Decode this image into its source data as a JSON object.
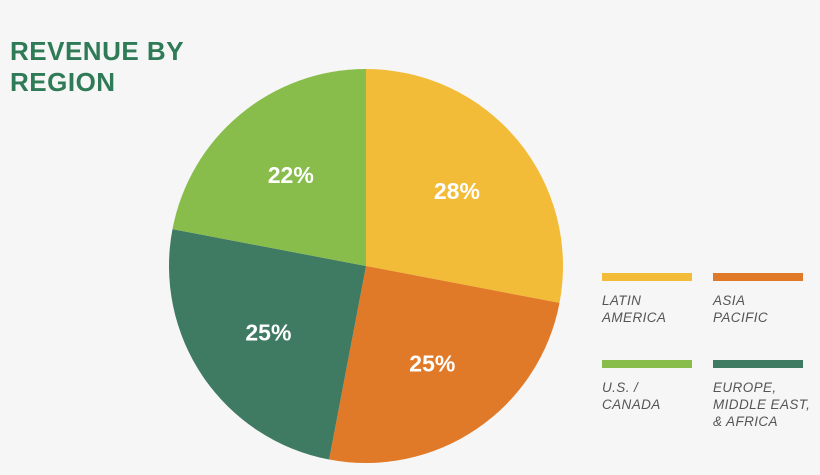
{
  "chart_data": {
    "type": "pie",
    "title": [
      "REVENUE BY",
      "REGION"
    ],
    "slices": [
      {
        "label": [
          "LATIN",
          "AMERICA"
        ],
        "value": 28,
        "display": "28%",
        "color": "#f2bc38"
      },
      {
        "label": [
          "ASIA",
          "PACIFIC"
        ],
        "value": 25,
        "display": "25%",
        "color": "#e07a28"
      },
      {
        "label": [
          "EUROPE,",
          "MIDDLE EAST,",
          "& AFRICA"
        ],
        "value": 25,
        "display": "25%",
        "color": "#3f7a63"
      },
      {
        "label": [
          "U.S. /",
          "CANADA"
        ],
        "value": 22,
        "display": "22%",
        "color": "#88bd4b"
      }
    ],
    "start_angle_deg": 0,
    "direction": "clockwise",
    "legend_position": "right"
  }
}
